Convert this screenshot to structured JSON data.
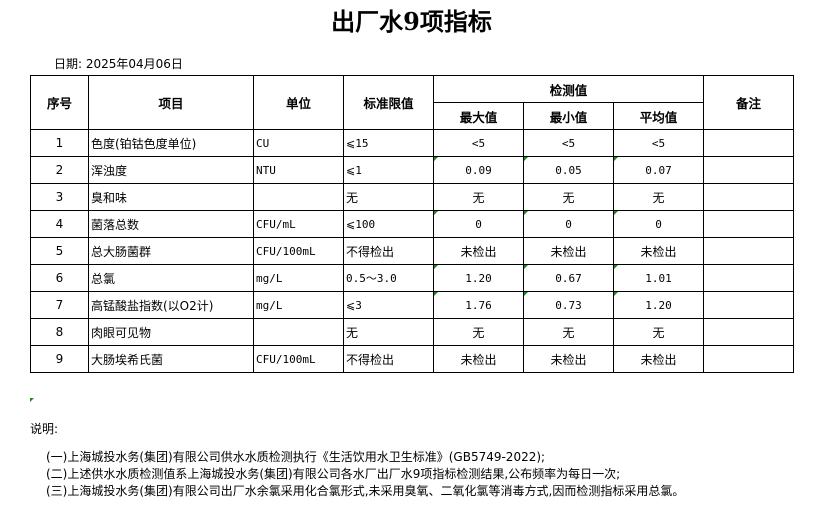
{
  "title": "出厂水9项指标",
  "date_label": "日期: 2025年04月06日",
  "headers": {
    "seq": "序号",
    "item": "项目",
    "unit": "单位",
    "limit": "标准限值",
    "measured": "检测值",
    "max": "最大值",
    "min": "最小值",
    "avg": "平均值",
    "remark": "备注"
  },
  "rows": [
    {
      "seq": "1",
      "item": "色度(铂钴色度单位)",
      "unit": "CU",
      "limit": "⩽15",
      "max": "<5",
      "min": "<5",
      "avg": "<5",
      "remark": ""
    },
    {
      "seq": "2",
      "item": "浑浊度",
      "unit": "NTU",
      "limit": "⩽1",
      "max": "0.09",
      "min": "0.05",
      "avg": "0.07",
      "remark": ""
    },
    {
      "seq": "3",
      "item": "臭和味",
      "unit": "",
      "limit": "无",
      "max": "无",
      "min": "无",
      "avg": "无",
      "remark": ""
    },
    {
      "seq": "4",
      "item": "菌落总数",
      "unit": "CFU/mL",
      "limit": "⩽100",
      "max": "0",
      "min": "0",
      "avg": "0",
      "remark": ""
    },
    {
      "seq": "5",
      "item": "总大肠菌群",
      "unit": "CFU/100mL",
      "limit": "不得检出",
      "max": "未检出",
      "min": "未检出",
      "avg": "未检出",
      "remark": ""
    },
    {
      "seq": "6",
      "item": "总氯",
      "unit": "mg/L",
      "limit": "0.5～3.0",
      "max": "1.20",
      "min": "0.67",
      "avg": "1.01",
      "remark": ""
    },
    {
      "seq": "7",
      "item": "高锰酸盐指数(以O2计)",
      "unit": "mg/L",
      "limit": "⩽3",
      "max": "1.76",
      "min": "0.73",
      "avg": "1.20",
      "remark": ""
    },
    {
      "seq": "8",
      "item": "肉眼可见物",
      "unit": "",
      "limit": "无",
      "max": "无",
      "min": "无",
      "avg": "无",
      "remark": ""
    },
    {
      "seq": "9",
      "item": "大肠埃希氏菌",
      "unit": "CFU/100mL",
      "limit": "不得检出",
      "max": "未检出",
      "min": "未检出",
      "avg": "未检出",
      "remark": ""
    }
  ],
  "notes_label": "说明:",
  "notes": [
    "(一)上海城投水务(集团)有限公司供水水质检测执行《生活饮用水卫生标准》(GB5749-2022);",
    "(二)上述供水水质检测值系上海城投水务(集团)有限公司各水厂出厂水9项指标检测结果,公布频率为每日一次;",
    "(三)上海城投水务(集团)有限公司出厂水余氯采用化合氯形式,未采用臭氧、二氧化氯等消毒方式,因而检测指标采用总氯。"
  ]
}
